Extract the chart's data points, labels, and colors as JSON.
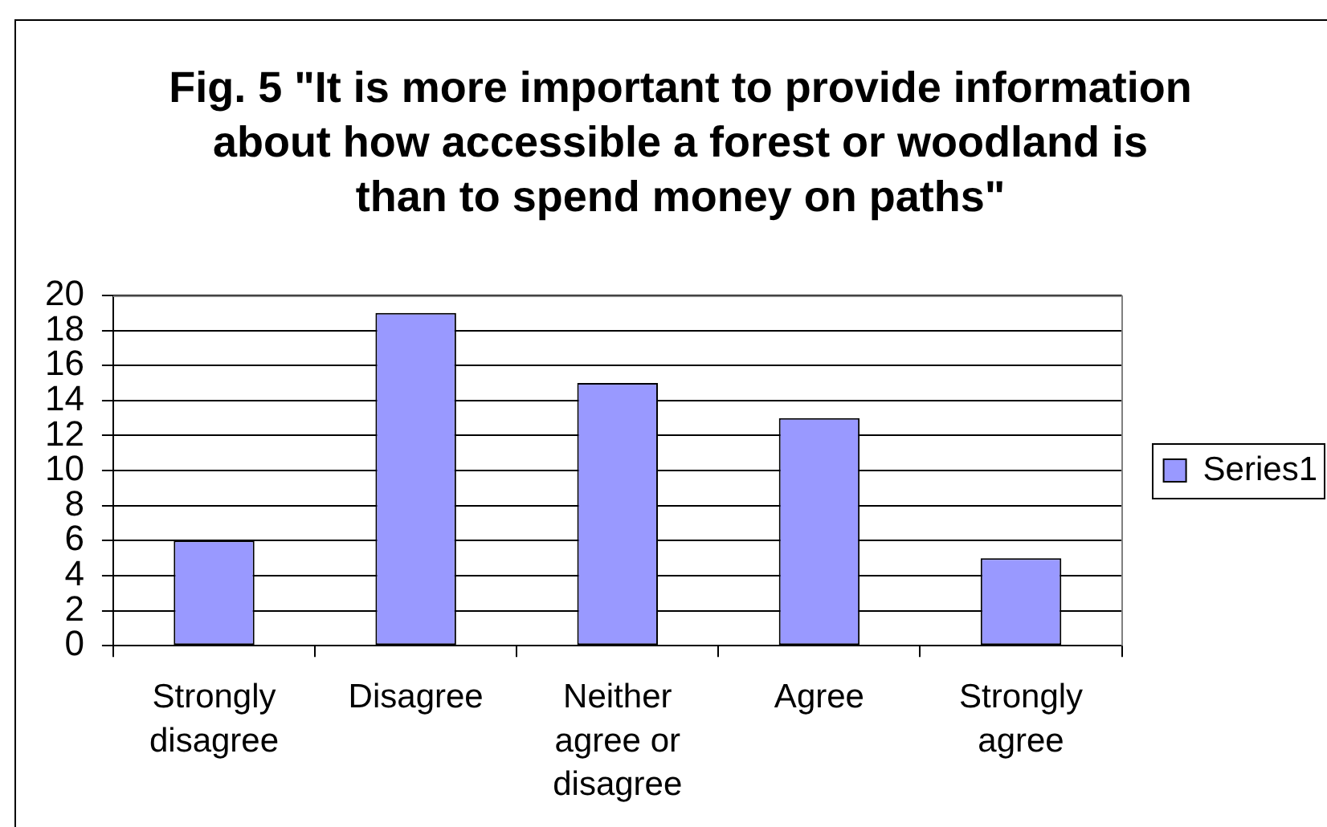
{
  "chart_data": {
    "type": "bar",
    "title": "Fig. 5 \"It is more important to provide information about how accessible a forest or woodland is than to spend money on paths\"",
    "categories": [
      "Strongly disagree",
      "Disagree",
      "Neither agree or disagree",
      "Agree",
      "Strongly agree"
    ],
    "series": [
      {
        "name": "Series1",
        "color": "#9999ff",
        "values": [
          6,
          19,
          15,
          13,
          5
        ]
      }
    ],
    "ylim": [
      0,
      20
    ],
    "yticks": [
      0,
      2,
      4,
      6,
      8,
      10,
      12,
      14,
      16,
      18,
      20
    ],
    "grid": "y",
    "legend": "right"
  }
}
